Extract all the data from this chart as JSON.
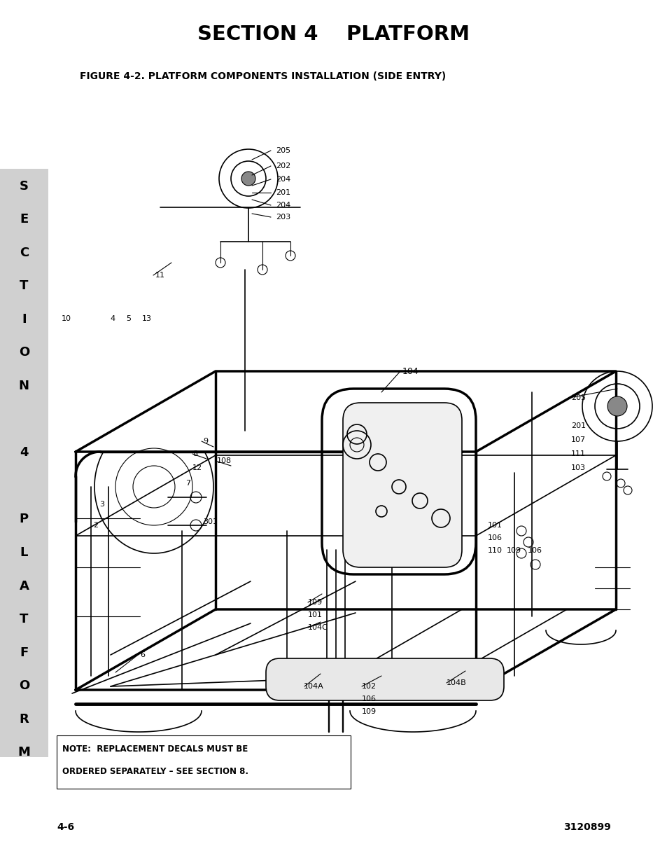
{
  "title": "SECTION 4    PLATFORM",
  "figure_title": "FIGURE 4-2. PLATFORM COMPONENTS INSTALLATION (SIDE ENTRY)",
  "page_number_left": "4-6",
  "page_number_right": "3120899",
  "note_line1": "NOTE:  REPLACEMENT DECALS MUST BE",
  "note_line2": "ORDERED SEPARATELY – SEE SECTION 8.",
  "sidebar_bg": "#d0d0d0",
  "bg_color": "#ffffff",
  "text_color": "#000000",
  "sidebar_chars": [
    "S",
    "E",
    "C",
    "T",
    "I",
    "O",
    "N",
    "",
    "4",
    "",
    "P",
    "L",
    "A",
    "T",
    "F",
    "O",
    "R",
    "M"
  ]
}
